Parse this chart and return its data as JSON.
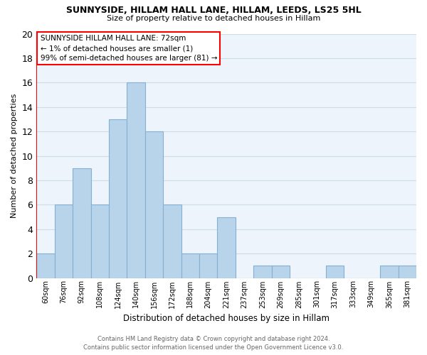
{
  "title": "SUNNYSIDE, HILLAM HALL LANE, HILLAM, LEEDS, LS25 5HL",
  "subtitle": "Size of property relative to detached houses in Hillam",
  "xlabel": "Distribution of detached houses by size in Hillam",
  "ylabel": "Number of detached properties",
  "bar_color": "#b8d4ea",
  "bar_edge_color": "#85afd4",
  "categories": [
    "60sqm",
    "76sqm",
    "92sqm",
    "108sqm",
    "124sqm",
    "140sqm",
    "156sqm",
    "172sqm",
    "188sqm",
    "204sqm",
    "221sqm",
    "237sqm",
    "253sqm",
    "269sqm",
    "285sqm",
    "301sqm",
    "317sqm",
    "333sqm",
    "349sqm",
    "365sqm",
    "381sqm"
  ],
  "values": [
    2,
    6,
    9,
    6,
    13,
    16,
    12,
    6,
    2,
    2,
    5,
    0,
    1,
    1,
    0,
    0,
    1,
    0,
    0,
    1,
    1
  ],
  "ylim": [
    0,
    20
  ],
  "yticks": [
    0,
    2,
    4,
    6,
    8,
    10,
    12,
    14,
    16,
    18,
    20
  ],
  "annotation_text_line1": "SUNNYSIDE HILLAM HALL LANE: 72sqm",
  "annotation_text_line2": "← 1% of detached houses are smaller (1)",
  "annotation_text_line3": "99% of semi-detached houses are larger (81) →",
  "red_line_x": -0.5,
  "grid_color": "#ccdde8",
  "footer_line1": "Contains HM Land Registry data © Crown copyright and database right 2024.",
  "footer_line2": "Contains public sector information licensed under the Open Government Licence v3.0.",
  "bg_color": "#edf4fb"
}
